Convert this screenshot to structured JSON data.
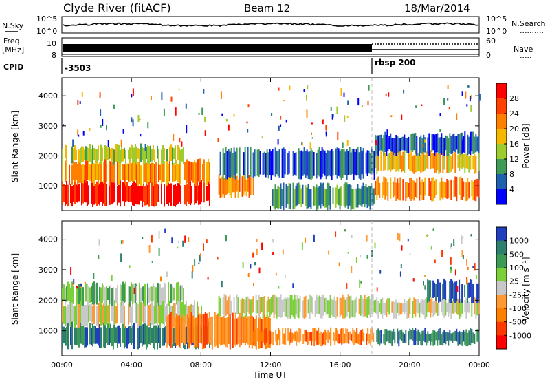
{
  "header": {
    "station": "Clyde River (fitACF)",
    "beam": "Beam 12",
    "date": "18/Mar/2014"
  },
  "aux": {
    "nsky_label": "N.Sky",
    "nsky_ticks": [
      "10^5",
      "10^0"
    ],
    "nsearch_label": "N.Search",
    "nsearch_ticks": [
      "10^5",
      "10^0"
    ],
    "freq_label_line1": "Freq.",
    "freq_label_line2": "[MHz]",
    "freq_ticks": [
      "10",
      "8"
    ],
    "nave_label": "Nave",
    "nave_ticks": [
      "60",
      "0"
    ],
    "cpid_label": "CPID",
    "cpid_segments": [
      {
        "start": 0.0,
        "label": "-3503"
      },
      {
        "start": 18.0,
        "label": "rbsp 200"
      }
    ]
  },
  "axes": {
    "xlabel": "Time UT",
    "xticks": [
      "00:00",
      "04:00",
      "08:00",
      "12:00",
      "16:00",
      "20:00",
      "00:00"
    ],
    "ylabel": "Slant Range [km]",
    "yticks": [
      "1000",
      "2000",
      "3000",
      "4000"
    ]
  },
  "colorbars": {
    "power": {
      "label": "Power [dB]",
      "ticks": [
        "28",
        "24",
        "20",
        "16",
        "12",
        "8",
        "4"
      ],
      "colors": [
        "#ff0000",
        "#ff4000",
        "#ff8000",
        "#f5b800",
        "#9ccc30",
        "#3f9a55",
        "#1e5fae",
        "#0000ff"
      ]
    },
    "velocity": {
      "label": "Velocity [m s⁻¹]",
      "ticks": [
        "1000",
        "500",
        "100",
        "25",
        "-25",
        "-100",
        "-500",
        "-1000"
      ],
      "colors": [
        "#1f3fbf",
        "#2f7f6f",
        "#3c9a55",
        "#7bd03a",
        "#c8c8c8",
        "#ff9933",
        "#ff7f00",
        "#ff3a00",
        "#ff0000"
      ]
    }
  },
  "chart_data": [
    {
      "type": "heatmap",
      "name": "power",
      "xlim": [
        0,
        24
      ],
      "ylim": [
        180,
        4600
      ],
      "bands": [
        {
          "x": [
            0,
            8.5
          ],
          "y": [
            400,
            1100
          ],
          "level": 0
        },
        {
          "x": [
            0,
            8.5
          ],
          "y": [
            1100,
            1800
          ],
          "level": 2
        },
        {
          "x": [
            0,
            7
          ],
          "y": [
            1800,
            2300
          ],
          "level": 4
        },
        {
          "x": [
            9,
            11
          ],
          "y": [
            700,
            1300
          ],
          "level": 2
        },
        {
          "x": [
            9,
            18
          ],
          "y": [
            1300,
            2200
          ],
          "level": 6
        },
        {
          "x": [
            12,
            18
          ],
          "y": [
            300,
            1000
          ],
          "level": 5
        },
        {
          "x": [
            18,
            24
          ],
          "y": [
            1500,
            2100
          ],
          "level": 3
        },
        {
          "x": [
            18,
            24
          ],
          "y": [
            600,
            1200
          ],
          "level": 2
        },
        {
          "x": [
            18,
            24
          ],
          "y": [
            2100,
            2700
          ],
          "level": 6
        }
      ]
    },
    {
      "type": "heatmap",
      "name": "velocity",
      "xlim": [
        0,
        24
      ],
      "ylim": [
        180,
        4600
      ],
      "bands": [
        {
          "x": [
            0,
            8.5
          ],
          "y": [
            500,
            1200
          ],
          "level": 1
        },
        {
          "x": [
            0,
            8
          ],
          "y": [
            1200,
            1900
          ],
          "level": 4
        },
        {
          "x": [
            0,
            7
          ],
          "y": [
            1900,
            2500
          ],
          "level": 3
        },
        {
          "x": [
            6,
            12
          ],
          "y": [
            500,
            1500
          ],
          "level": 6
        },
        {
          "x": [
            9,
            18
          ],
          "y": [
            1500,
            2100
          ],
          "level": 4
        },
        {
          "x": [
            11,
            18
          ],
          "y": [
            600,
            1000
          ],
          "level": 6
        },
        {
          "x": [
            18,
            24
          ],
          "y": [
            1500,
            2000
          ],
          "level": 4
        },
        {
          "x": [
            18,
            24
          ],
          "y": [
            600,
            1000
          ],
          "level": 1
        },
        {
          "x": [
            21,
            24
          ],
          "y": [
            2000,
            2600
          ],
          "level": 0
        }
      ]
    }
  ]
}
